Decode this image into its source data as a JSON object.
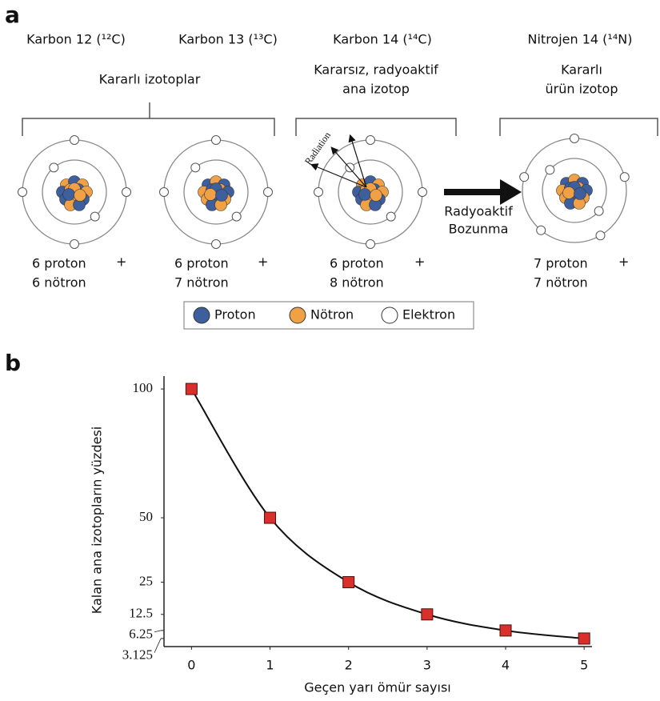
{
  "panel_a": {
    "label": "a",
    "isotopes": [
      {
        "name": "Karbon 12 (¹²C)",
        "counts": [
          "6 proton",
          "6 nötron"
        ]
      },
      {
        "name": "Karbon 13 (¹³C)",
        "counts": [
          "6 proton",
          "7 nötron"
        ]
      },
      {
        "name": "Karbon 14 (¹⁴C)",
        "counts": [
          "6 proton",
          "8 nötron"
        ]
      },
      {
        "name": "Nitrojen 14 (¹⁴N)",
        "counts": [
          "7 proton",
          "7 nötron"
        ]
      }
    ],
    "groups": [
      {
        "lines": [
          "Kararlı izotoplar"
        ]
      },
      {
        "lines": [
          "Kararsız, radyoaktif",
          "ana izotop"
        ]
      },
      {
        "lines": [
          "Kararlı",
          "ürün izotop"
        ]
      }
    ],
    "plus": "+",
    "radiation": "Radiation",
    "decay": [
      "Radyoaktif",
      "Bozunma"
    ],
    "legend": [
      "Proton",
      "Nötron",
      "Elektron"
    ]
  },
  "panel_b": {
    "label": "b"
  },
  "chart_data": {
    "type": "line",
    "xlabel": "Geçen yarı ömür sayısı",
    "ylabel": "Kalan ana izotopların yüzdesi",
    "x": [
      0,
      1,
      2,
      3,
      4,
      5
    ],
    "values": [
      100,
      50,
      25,
      12.5,
      6.25,
      3.125
    ],
    "color": "#d9302c",
    "line_color": "#111111",
    "xlim": [
      -0.35,
      5.1
    ],
    "ylim": [
      0,
      105
    ],
    "xticks": [
      0,
      1,
      2,
      3,
      4,
      5
    ],
    "yticks": [
      100,
      50,
      25,
      12.5,
      6.25,
      3.125
    ]
  }
}
